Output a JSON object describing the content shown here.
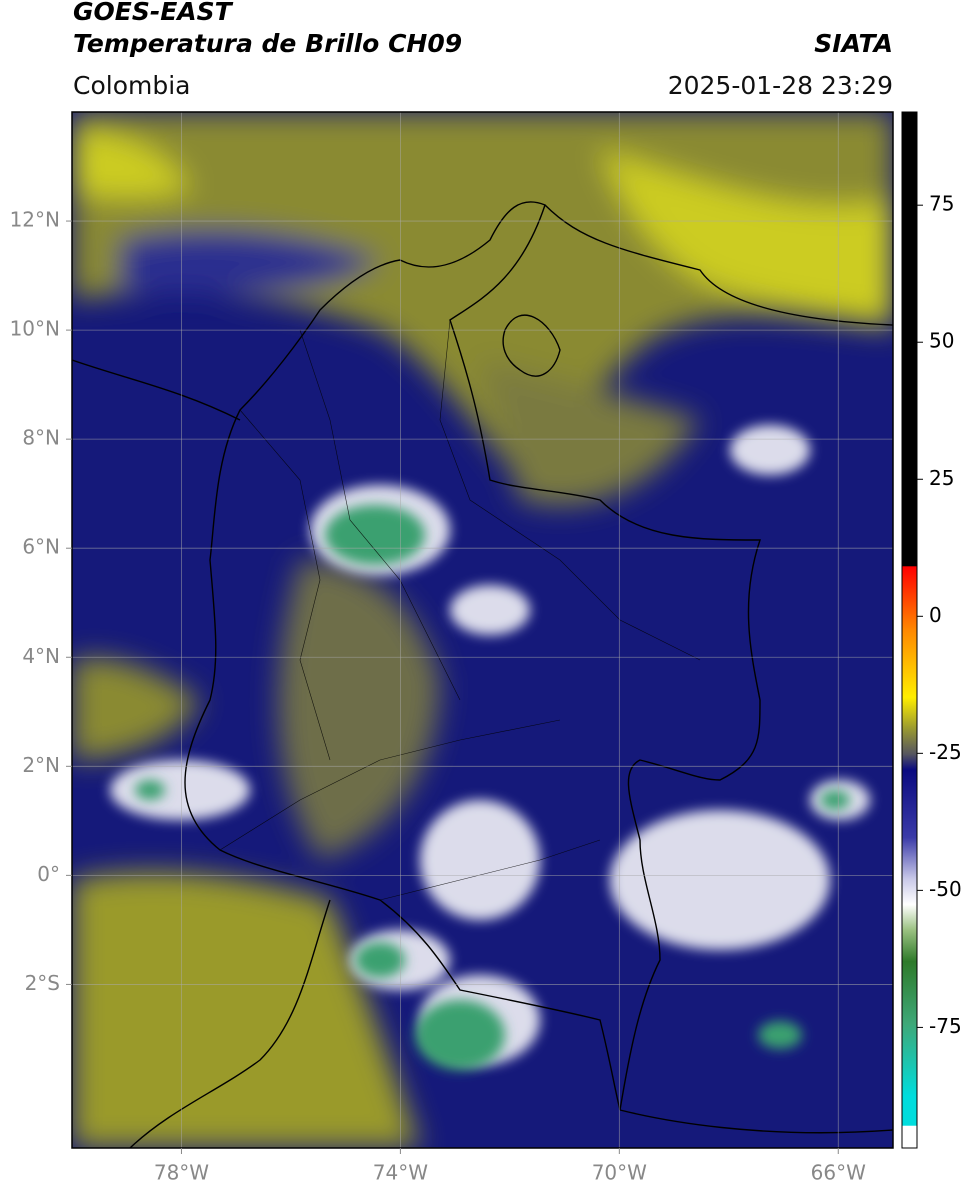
{
  "header": {
    "title_line1": "GOES-EAST",
    "title_line2": "Temperatura de Brillo CH09",
    "source": "SIATA",
    "region": "Colombia",
    "datetime": "2025-01-28 23:29"
  },
  "map": {
    "xlim": [
      -80,
      -65
    ],
    "ylim": [
      -5,
      14
    ],
    "xticks": [
      {
        "value": -78,
        "label": "78°W"
      },
      {
        "value": -74,
        "label": "74°W"
      },
      {
        "value": -70,
        "label": "70°W"
      },
      {
        "value": -66,
        "label": "66°W"
      }
    ],
    "yticks": [
      {
        "value": 12,
        "label": "12°N"
      },
      {
        "value": 10,
        "label": "10°N"
      },
      {
        "value": 8,
        "label": "8°N"
      },
      {
        "value": 6,
        "label": "6°N"
      },
      {
        "value": 4,
        "label": "4°N"
      },
      {
        "value": 2,
        "label": "2°N"
      },
      {
        "value": 0,
        "label": "0°"
      },
      {
        "value": -2,
        "label": "2°S"
      }
    ],
    "grid": true
  },
  "colorbar": {
    "lim": [
      -97,
      92
    ],
    "ticks": [
      75,
      50,
      25,
      0,
      -25,
      -50,
      -75
    ]
  }
}
